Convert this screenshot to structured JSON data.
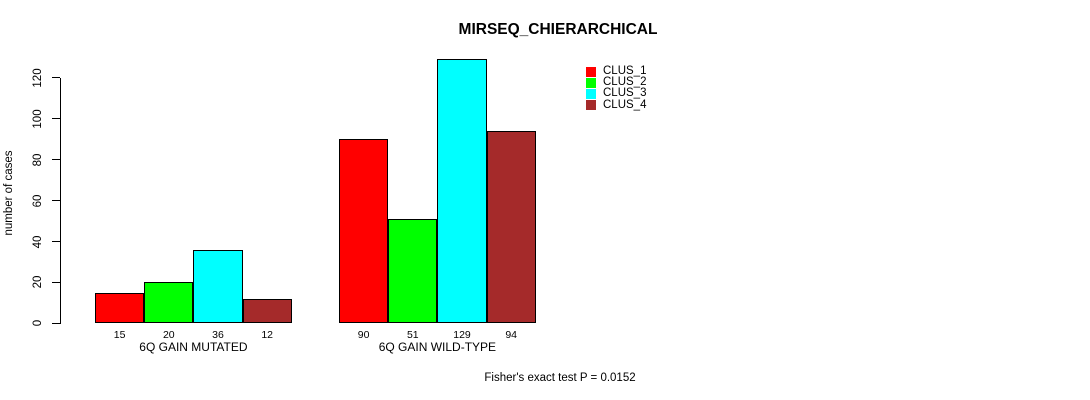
{
  "page": {
    "background": "#ffffff",
    "text_color": "#000000"
  },
  "chart_data": {
    "type": "bar",
    "title": "MIRSEQ_CHIERARCHICAL",
    "categories": [
      "6Q GAIN MUTATED",
      "6Q GAIN WILD-TYPE"
    ],
    "series": [
      {
        "name": "CLUS_1",
        "color": "#FF0000",
        "values": [
          15,
          90
        ]
      },
      {
        "name": "CLUS_2",
        "color": "#00FF00",
        "values": [
          20,
          51
        ]
      },
      {
        "name": "CLUS_3",
        "color": "#00FFFF",
        "values": [
          36,
          129
        ]
      },
      {
        "name": "CLUS_4",
        "color": "#A52A2A",
        "values": [
          12,
          94
        ]
      }
    ],
    "xlabel": "",
    "ylabel": "number of cases",
    "yticks": [
      0,
      20,
      40,
      60,
      80,
      100,
      120
    ],
    "ylim": [
      0,
      129
    ],
    "grid": false,
    "bar_borders": "#000000",
    "bar_value_labels_shown": true,
    "legend_position": "top-right",
    "legend_entries": [
      "CLUS_1",
      "CLUS_2",
      "CLUS_3",
      "CLUS_4"
    ],
    "annotation": "Fisher's exact test P = 0.0152"
  }
}
